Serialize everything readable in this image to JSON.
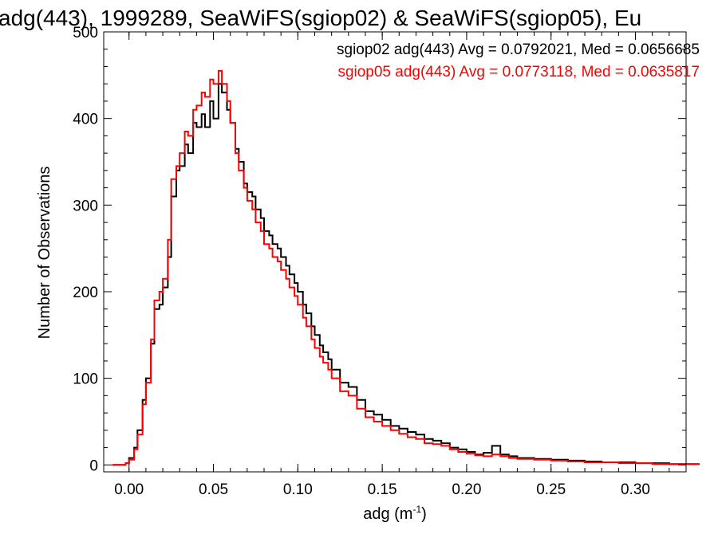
{
  "chart_data": {
    "type": "line",
    "title": "adg(443), 1999289, SeaWiFS(sgiop02) & SeaWiFS(sgiop05), Eu",
    "xlabel": "adg (m",
    "xlabel_sup": "-1",
    "xlabel_close": ")",
    "ylabel": "Number of Observations",
    "xlim": [
      -0.015,
      0.33
    ],
    "ylim": [
      -8,
      500
    ],
    "xticks": [
      0.0,
      0.05,
      0.1,
      0.15,
      0.2,
      0.25,
      0.3
    ],
    "xtick_labels": [
      "0.00",
      "0.05",
      "0.10",
      "0.15",
      "0.20",
      "0.25",
      "0.30"
    ],
    "yticks": [
      0,
      100,
      200,
      300,
      400,
      500
    ],
    "ytick_labels": [
      "0",
      "100",
      "200",
      "300",
      "400",
      "500"
    ],
    "grid": false,
    "legend_position": "top-right",
    "series": [
      {
        "label": "sgiop02 adg(443) Avg = 0.0792021, Med = 0.0656685",
        "color": "#000000",
        "x": [
          -0.01,
          -0.002,
          0.0,
          0.003,
          0.005,
          0.008,
          0.01,
          0.013,
          0.015,
          0.018,
          0.02,
          0.023,
          0.025,
          0.028,
          0.03,
          0.033,
          0.035,
          0.038,
          0.04,
          0.043,
          0.045,
          0.048,
          0.05,
          0.053,
          0.055,
          0.058,
          0.06,
          0.063,
          0.065,
          0.068,
          0.07,
          0.073,
          0.075,
          0.078,
          0.08,
          0.083,
          0.085,
          0.088,
          0.09,
          0.093,
          0.095,
          0.098,
          0.1,
          0.103,
          0.105,
          0.108,
          0.11,
          0.113,
          0.115,
          0.118,
          0.12,
          0.125,
          0.13,
          0.135,
          0.14,
          0.145,
          0.15,
          0.155,
          0.16,
          0.165,
          0.17,
          0.175,
          0.18,
          0.185,
          0.19,
          0.195,
          0.2,
          0.205,
          0.21,
          0.215,
          0.22,
          0.225,
          0.23,
          0.24,
          0.25,
          0.26,
          0.27,
          0.28,
          0.29,
          0.3,
          0.31,
          0.32,
          0.33
        ],
        "y": [
          0,
          2,
          8,
          20,
          40,
          75,
          100,
          140,
          180,
          185,
          205,
          240,
          310,
          340,
          345,
          370,
          360,
          395,
          390,
          405,
          390,
          420,
          400,
          440,
          430,
          410,
          395,
          365,
          350,
          325,
          315,
          310,
          295,
          285,
          270,
          265,
          255,
          250,
          240,
          230,
          220,
          210,
          200,
          185,
          175,
          160,
          150,
          138,
          130,
          122,
          110,
          95,
          90,
          75,
          62,
          58,
          52,
          45,
          42,
          38,
          35,
          30,
          28,
          25,
          20,
          18,
          15,
          12,
          14,
          22,
          12,
          10,
          8,
          7,
          6,
          5,
          4,
          3,
          3,
          2,
          2,
          1,
          1
        ]
      },
      {
        "label": "sgiop05 adg(443) Avg = 0.0773118, Med = 0.0635817",
        "color": "#ff0000",
        "x": [
          -0.01,
          -0.002,
          0.0,
          0.003,
          0.005,
          0.008,
          0.01,
          0.013,
          0.015,
          0.018,
          0.02,
          0.023,
          0.025,
          0.028,
          0.03,
          0.033,
          0.035,
          0.038,
          0.04,
          0.043,
          0.045,
          0.048,
          0.05,
          0.053,
          0.055,
          0.058,
          0.06,
          0.063,
          0.065,
          0.068,
          0.07,
          0.073,
          0.075,
          0.078,
          0.08,
          0.083,
          0.085,
          0.088,
          0.09,
          0.093,
          0.095,
          0.098,
          0.1,
          0.103,
          0.105,
          0.108,
          0.11,
          0.113,
          0.115,
          0.118,
          0.12,
          0.125,
          0.13,
          0.135,
          0.14,
          0.145,
          0.15,
          0.155,
          0.16,
          0.165,
          0.17,
          0.175,
          0.18,
          0.185,
          0.19,
          0.195,
          0.2,
          0.205,
          0.21,
          0.215,
          0.22,
          0.225,
          0.23,
          0.24,
          0.25,
          0.26,
          0.27,
          0.28,
          0.29,
          0.3,
          0.31,
          0.32,
          0.33
        ],
        "y": [
          0,
          2,
          6,
          18,
          35,
          70,
          95,
          145,
          190,
          200,
          215,
          260,
          330,
          345,
          360,
          385,
          380,
          410,
          415,
          430,
          425,
          445,
          440,
          455,
          440,
          420,
          395,
          360,
          340,
          320,
          305,
          295,
          280,
          270,
          255,
          250,
          240,
          235,
          225,
          215,
          205,
          195,
          185,
          170,
          160,
          145,
          135,
          125,
          118,
          110,
          100,
          85,
          80,
          65,
          55,
          50,
          45,
          40,
          36,
          32,
          30,
          25,
          24,
          22,
          18,
          15,
          13,
          11,
          10,
          12,
          10,
          8,
          7,
          6,
          5,
          4,
          3,
          3,
          2,
          2,
          1,
          1,
          1
        ]
      }
    ]
  }
}
